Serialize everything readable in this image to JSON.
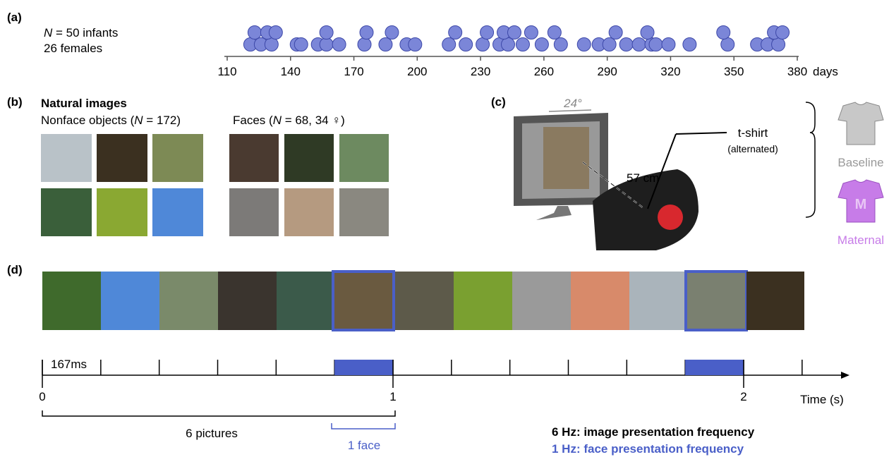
{
  "panel_a": {
    "label": "(a)",
    "n_parts": [
      "N",
      " = 50 infants"
    ],
    "females": "26 females",
    "axis": {
      "lim": [
        110,
        380
      ],
      "ticks": [
        110,
        140,
        170,
        200,
        230,
        260,
        290,
        320,
        350,
        380
      ],
      "unit": "days"
    },
    "dots": {
      "bottom": [
        121,
        126,
        131,
        143,
        145,
        153,
        157,
        163,
        175,
        185,
        195,
        199,
        215,
        223,
        231,
        239,
        243,
        250,
        259,
        268,
        279,
        286,
        291,
        299,
        305,
        311,
        313,
        319,
        329,
        347,
        361,
        366,
        371
      ],
      "top": [
        123,
        129,
        133,
        157,
        176,
        188,
        218,
        233,
        241,
        246,
        254,
        265,
        294,
        309,
        345,
        369,
        373
      ]
    }
  },
  "panel_b": {
    "label": "(b)",
    "title": "Natural images",
    "nonface_parts": [
      "Nonface objects (",
      "N",
      " = 172)"
    ],
    "faces_parts": [
      "Faces (",
      "N",
      " = 68, 34 ♀)"
    ]
  },
  "panel_c": {
    "label": "(c)",
    "angle": "24°",
    "distance": "57 cm",
    "tshirt": "t-shirt",
    "alternated": "(alternated)",
    "shirt_letter": "M",
    "baseline": "Baseline",
    "maternal": "Maternal"
  },
  "panel_d": {
    "label": "(d)",
    "duration": "167ms",
    "time_ticks": [
      0,
      1,
      2
    ],
    "time_label": "Time (s)",
    "pictures": "6 pictures",
    "face": "1 face",
    "image_freq": "6 Hz: image presentation frequency",
    "face_freq": "1 Hz: face presentation frequency"
  }
}
